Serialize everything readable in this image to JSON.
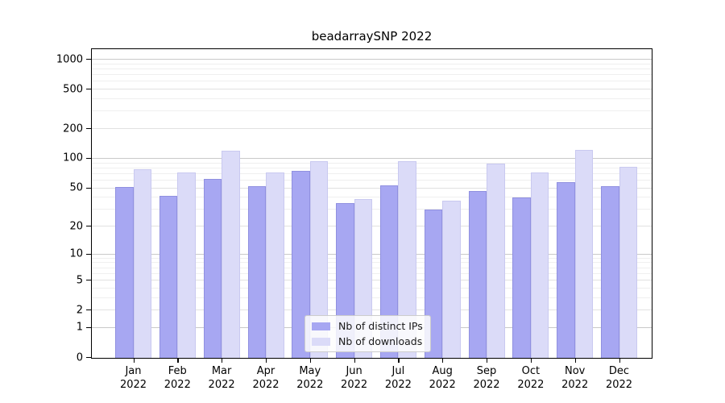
{
  "title": "beadarraySNP 2022",
  "colors": {
    "bar_ips_fill": "#a7a7f2",
    "bar_ips_edge": "#9090e0",
    "bar_downloads_fill": "#dbdbf8",
    "bar_downloads_edge": "#c9c9f0",
    "grid_strong": "#c9c9c9",
    "grid_mid": "#e1e1e1",
    "grid_minor": "#efefef",
    "axis": "#000000",
    "legend_bg": "#fdfdfd",
    "legend_border": "#cccccc"
  },
  "chart_data": {
    "type": "bar",
    "title": "beadarraySNP 2022",
    "months": [
      "Jan",
      "Feb",
      "Mar",
      "Apr",
      "May",
      "Jun",
      "Jul",
      "Aug",
      "Sep",
      "Oct",
      "Nov",
      "Dec"
    ],
    "year": "2022",
    "categories": [
      "Jan 2022",
      "Feb 2022",
      "Mar 2022",
      "Apr 2022",
      "May 2022",
      "Jun 2022",
      "Jul 2022",
      "Aug 2022",
      "Sep 2022",
      "Oct 2022",
      "Nov 2022",
      "Dec 2022"
    ],
    "series": [
      {
        "name": "Nb of distinct IPs",
        "values": [
          51,
          42,
          62,
          52,
          75,
          35,
          53,
          30,
          47,
          40,
          58,
          52
        ]
      },
      {
        "name": "Nb of downloads",
        "values": [
          78,
          72,
          120,
          72,
          94,
          39,
          94,
          37,
          89,
          73,
          123,
          83
        ]
      }
    ],
    "y_scale": "log1p",
    "y_ticks": [
      0,
      1,
      2,
      5,
      10,
      20,
      50,
      100,
      200,
      500,
      1000
    ],
    "gridlines_strong": [
      1,
      10,
      100,
      1000
    ],
    "gridlines_mid": [
      2,
      5,
      20,
      50,
      200,
      500
    ],
    "gridlines_minor": [
      3,
      4,
      6,
      7,
      8,
      9,
      30,
      40,
      60,
      70,
      80,
      90,
      300,
      400,
      600,
      700,
      800,
      900
    ],
    "ylim": [
      0,
      1200
    ],
    "grid": "on",
    "legend_position": "inside-bottom-center",
    "xlabel": "",
    "ylabel": ""
  }
}
